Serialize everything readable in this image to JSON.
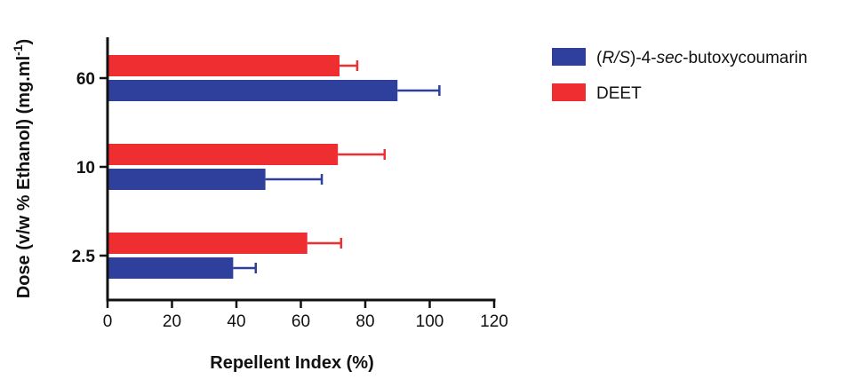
{
  "chart_data": {
    "type": "bar",
    "orientation": "horizontal",
    "title": "",
    "categories": [
      "60",
      "10",
      "2.5"
    ],
    "series": [
      {
        "name": "DEET",
        "color": "#ee2e30",
        "values": [
          72,
          71.5,
          62
        ],
        "errors": [
          5.5,
          14.5,
          10.5
        ]
      },
      {
        "name": "(R/S)-4-sec-butoxycoumarin",
        "name_parts": [
          {
            "text": "(",
            "italic": false
          },
          {
            "text": "R/S",
            "italic": true
          },
          {
            "text": ")-4-",
            "italic": false
          },
          {
            "text": "sec",
            "italic": true
          },
          {
            "text": "-butoxycoumarin",
            "italic": false
          }
        ],
        "color": "#2f3f9c",
        "values": [
          90,
          49,
          39
        ],
        "errors": [
          13,
          17.5,
          7
        ]
      }
    ],
    "xlabel": "Repellent Index (%)",
    "ylabel": "Dose (v/w % Ethanol) (mg.ml",
    "ylabel_sup": "-1",
    "ylabel_suffix": ")",
    "xlim": [
      0,
      120
    ],
    "xticks": [
      "0",
      "20",
      "40",
      "60",
      "80",
      "100",
      "120"
    ],
    "grid": false,
    "legend_position": "right"
  }
}
